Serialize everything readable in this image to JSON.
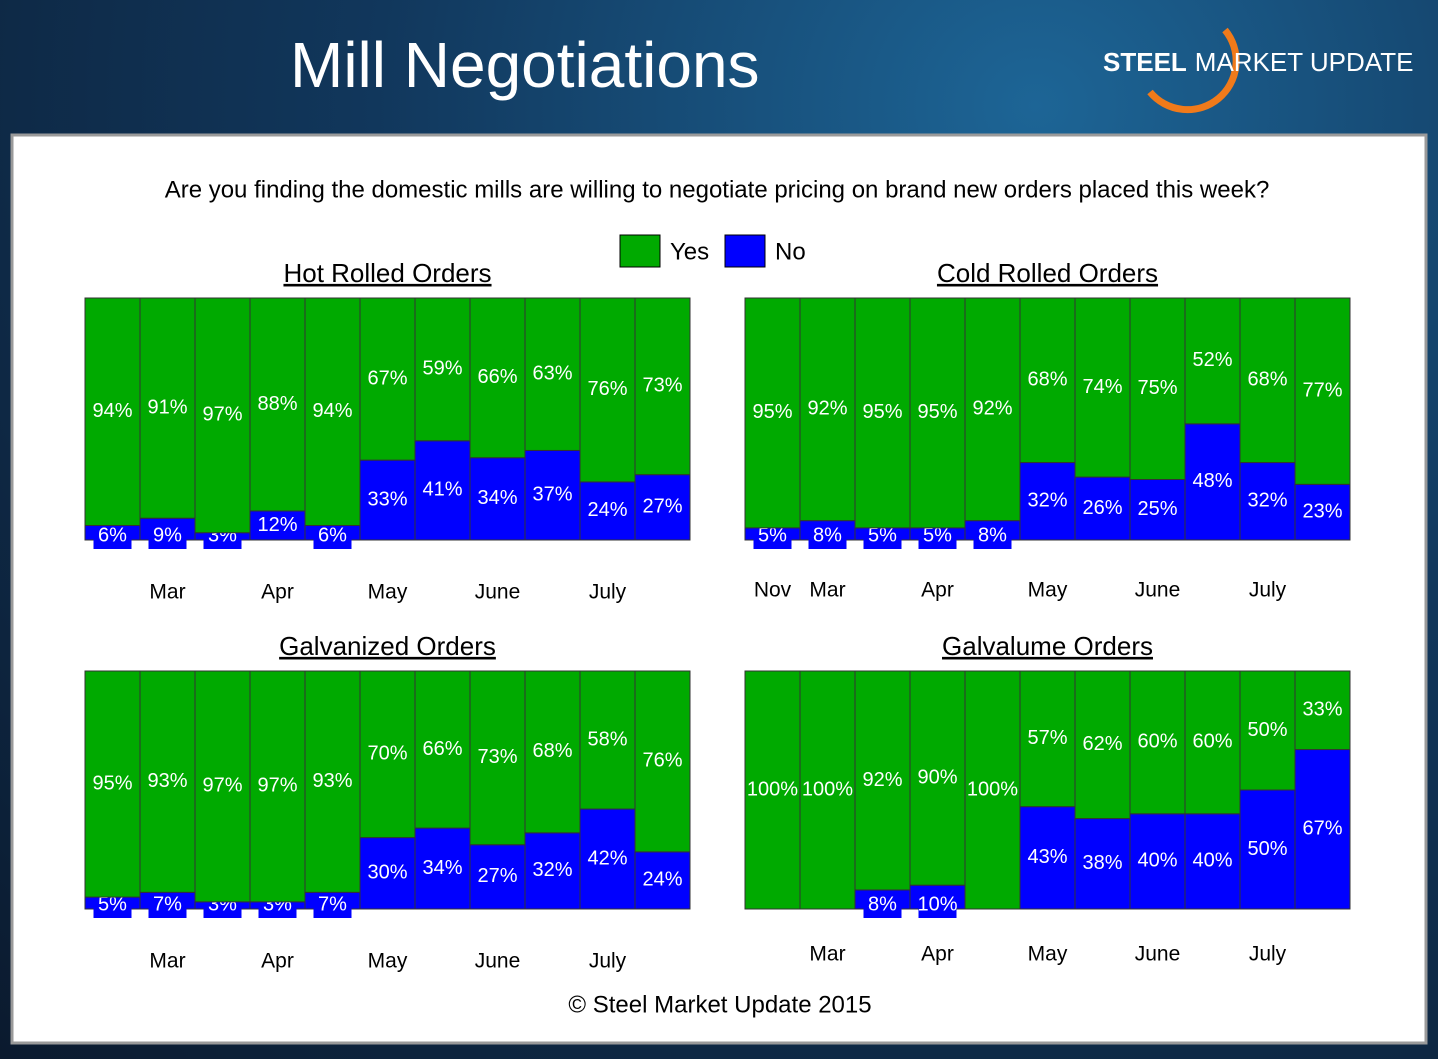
{
  "title": "Mill Negotiations",
  "logo": {
    "bold": "STEEL",
    "rest": "MARKET UPDATE"
  },
  "question": "Are you finding the domestic mills are willing to negotiate pricing on brand new orders placed this week?",
  "footer": "© Steel Market Update 2015",
  "chart_data": [
    {
      "type": "bar",
      "stacked": true,
      "title": "Hot Rolled Orders",
      "ylim": [
        0,
        100
      ],
      "categories": [
        null,
        "Mar",
        null,
        "Apr",
        null,
        "May",
        null,
        "June",
        null,
        "July",
        null
      ],
      "series": [
        {
          "name": "Yes",
          "color": "#00aa00",
          "values": [
            94,
            91,
            97,
            88,
            94,
            67,
            59,
            66,
            63,
            76,
            73
          ],
          "value_labels": [
            "94%",
            "91%",
            "97%",
            "88%",
            "94%",
            "67%",
            "59%",
            "66%",
            "63%",
            "76%",
            "73%"
          ]
        },
        {
          "name": "No",
          "color": "#0000ff",
          "values": [
            6,
            9,
            3,
            12,
            6,
            33,
            41,
            34,
            37,
            24,
            27
          ],
          "value_labels": [
            "6%",
            "9%",
            "3%",
            "12%",
            "6%",
            "33%",
            "41%",
            "34%",
            "37%",
            "24%",
            "27%"
          ]
        }
      ]
    },
    {
      "type": "bar",
      "stacked": true,
      "title": "Cold Rolled Orders",
      "ylim": [
        0,
        100
      ],
      "categories": [
        "Nov",
        "Mar",
        null,
        "Apr",
        null,
        "May",
        null,
        "June",
        null,
        "July",
        null
      ],
      "series": [
        {
          "name": "Yes",
          "color": "#00aa00",
          "values": [
            95,
            92,
            95,
            95,
            92,
            68,
            74,
            75,
            52,
            68,
            77
          ],
          "value_labels": [
            "95%",
            "92%",
            "95%",
            "95%",
            "92%",
            "68%",
            "74%",
            "75%",
            "52%",
            "68%",
            "77%"
          ]
        },
        {
          "name": "No",
          "color": "#0000ff",
          "values": [
            5,
            8,
            5,
            5,
            8,
            32,
            26,
            25,
            48,
            32,
            23
          ],
          "value_labels": [
            "5%",
            "8%",
            "5%",
            "5%",
            "8%",
            "32%",
            "26%",
            "25%",
            "48%",
            "32%",
            "23%"
          ]
        }
      ]
    },
    {
      "type": "bar",
      "stacked": true,
      "title": "Galvanized Orders",
      "ylim": [
        0,
        100
      ],
      "categories": [
        null,
        "Mar",
        null,
        "Apr",
        null,
        "May",
        null,
        "June",
        null,
        "July",
        null
      ],
      "series": [
        {
          "name": "Yes",
          "color": "#00aa00",
          "values": [
            95,
            93,
            97,
            97,
            93,
            70,
            66,
            73,
            68,
            58,
            76
          ],
          "value_labels": [
            "95%",
            "93%",
            "97%",
            "97%",
            "93%",
            "70%",
            "66%",
            "73%",
            "68%",
            "58%",
            "76%"
          ]
        },
        {
          "name": "No",
          "color": "#0000ff",
          "values": [
            5,
            7,
            3,
            3,
            7,
            30,
            34,
            27,
            32,
            42,
            24
          ],
          "value_labels": [
            "5%",
            "7%",
            "3%",
            "3%",
            "7%",
            "30%",
            "34%",
            "27%",
            "32%",
            "42%",
            "24%"
          ]
        }
      ]
    },
    {
      "type": "bar",
      "stacked": true,
      "title": "Galvalume Orders",
      "ylim": [
        0,
        100
      ],
      "categories": [
        null,
        "Mar",
        null,
        "Apr",
        null,
        "May",
        null,
        "June",
        null,
        "July",
        null
      ],
      "series": [
        {
          "name": "Yes",
          "color": "#00aa00",
          "values": [
            100,
            100,
            92,
            90,
            100,
            57,
            62,
            60,
            60,
            50,
            33
          ],
          "value_labels": [
            "100%",
            "100%",
            "92%",
            "90%",
            "100%",
            "57%",
            "62%",
            "60%",
            "60%",
            "50%",
            "33%"
          ]
        },
        {
          "name": "No",
          "color": "#0000ff",
          "values": [
            0,
            0,
            8,
            10,
            0,
            43,
            38,
            40,
            40,
            50,
            67
          ],
          "value_labels": [
            null,
            null,
            "8%",
            "10%",
            null,
            "43%",
            "38%",
            "40%",
            "40%",
            "50%",
            "67%"
          ]
        }
      ]
    }
  ]
}
